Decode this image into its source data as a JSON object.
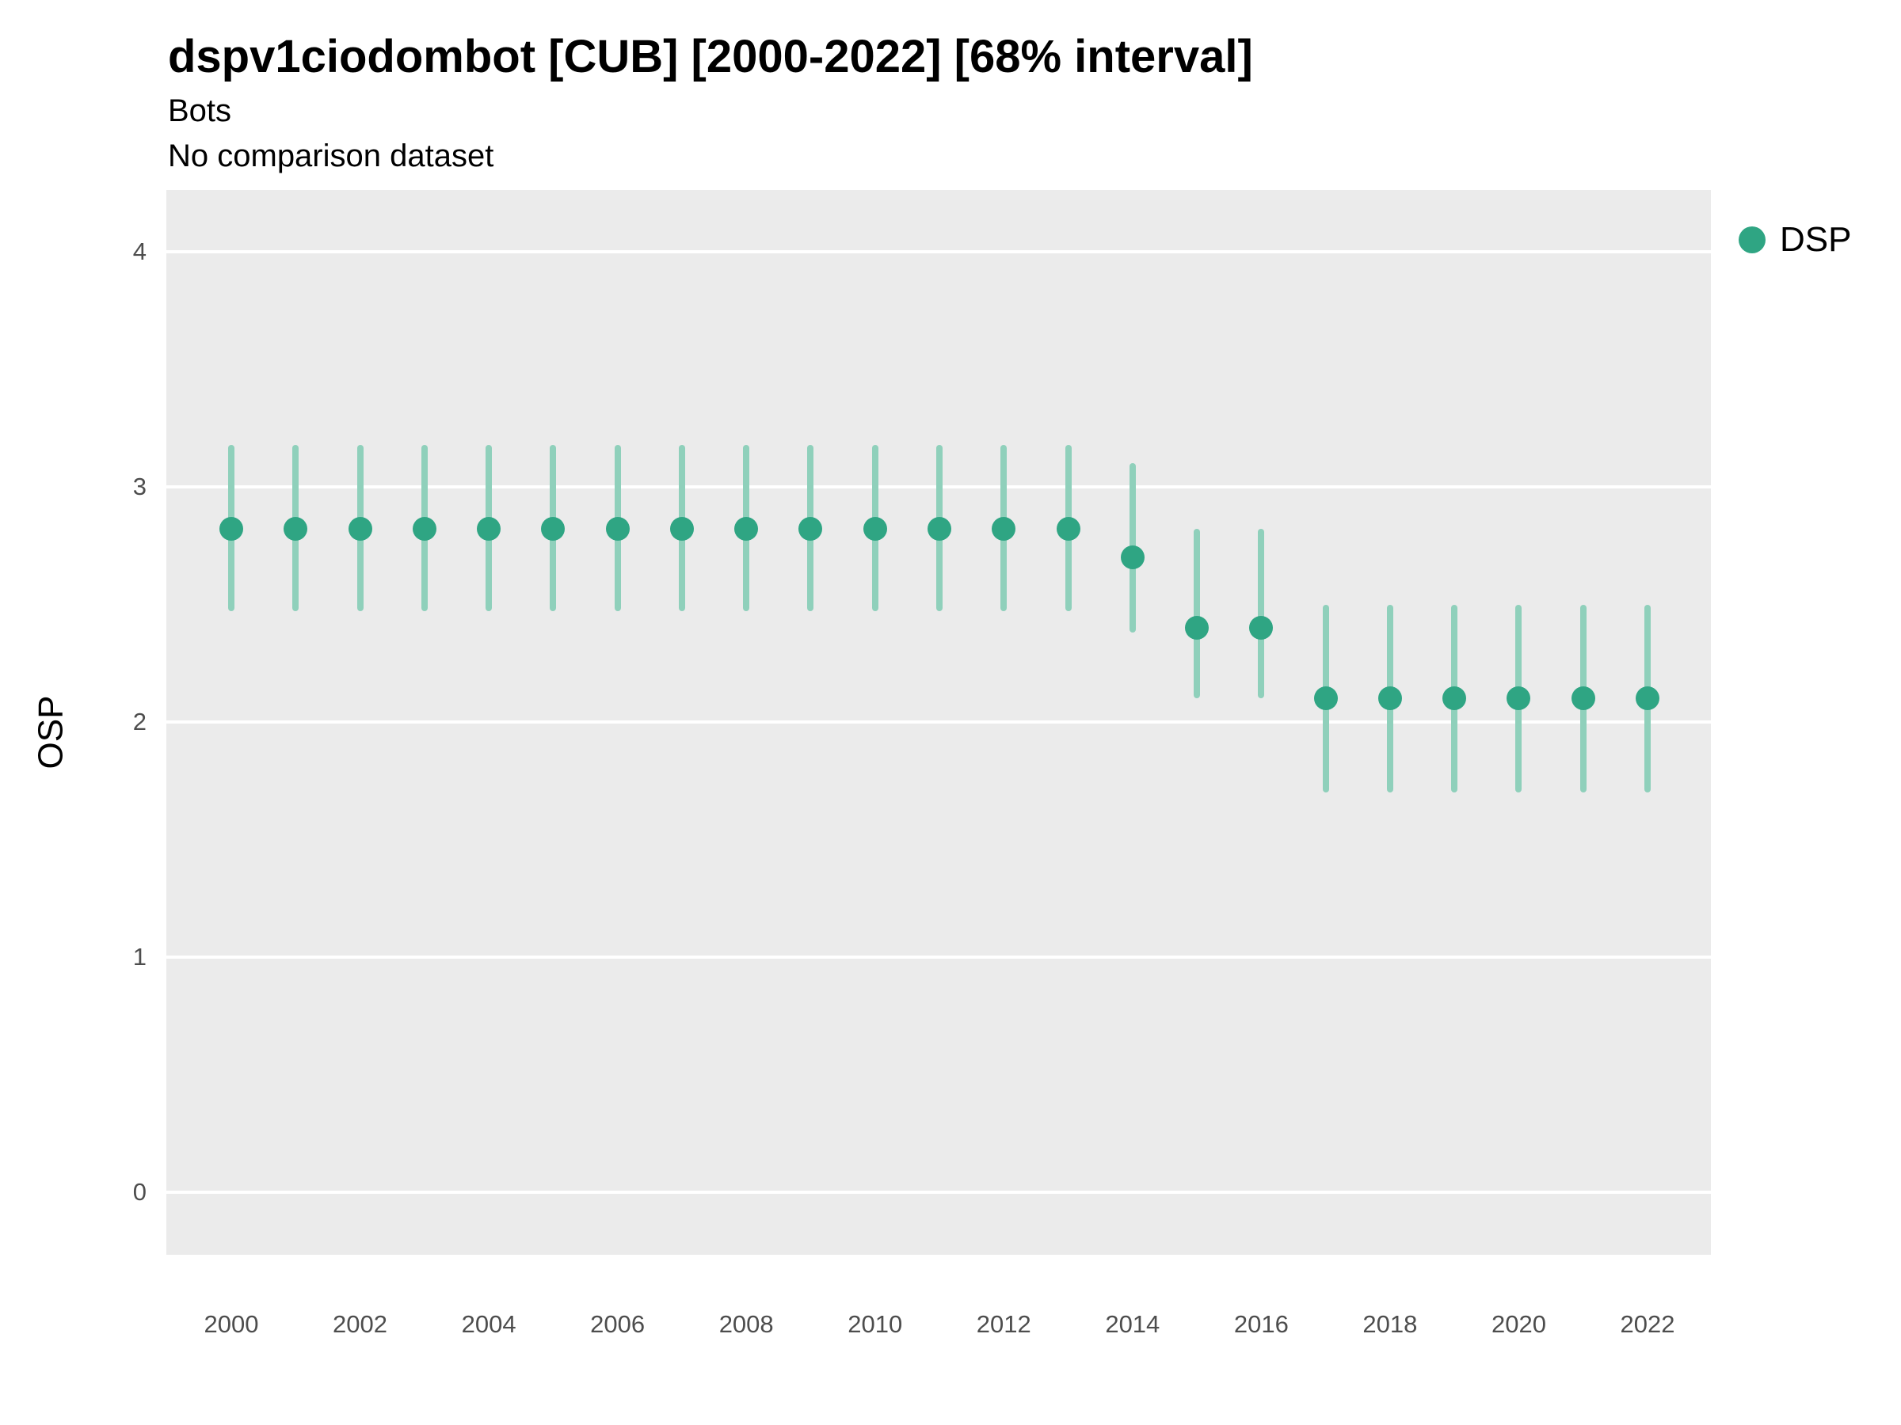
{
  "header": {
    "title": "dspv1ciodombot [CUB] [2000-2022] [68% interval]",
    "subtitle": "Bots",
    "note": "No comparison dataset"
  },
  "legend": {
    "label": "DSP"
  },
  "chart_data": {
    "type": "pointrange",
    "title": "dspv1ciodombot [CUB] [2000-2022] [68% interval]",
    "subtitle": "Bots",
    "note": "No comparison dataset",
    "xlabel": "",
    "ylabel": "OSP",
    "x": [
      2000,
      2001,
      2002,
      2003,
      2004,
      2005,
      2006,
      2007,
      2008,
      2009,
      2010,
      2011,
      2012,
      2013,
      2014,
      2015,
      2016,
      2017,
      2018,
      2019,
      2020,
      2021,
      2022
    ],
    "series": [
      {
        "name": "DSP",
        "values": [
          2.82,
          2.82,
          2.82,
          2.82,
          2.82,
          2.82,
          2.82,
          2.82,
          2.82,
          2.82,
          2.82,
          2.82,
          2.82,
          2.82,
          2.7,
          2.4,
          2.4,
          2.1,
          2.1,
          2.1,
          2.1,
          2.1,
          2.1
        ],
        "lower": [
          2.47,
          2.47,
          2.47,
          2.47,
          2.47,
          2.47,
          2.47,
          2.47,
          2.47,
          2.47,
          2.47,
          2.47,
          2.47,
          2.47,
          2.38,
          2.1,
          2.1,
          1.7,
          1.7,
          1.7,
          1.7,
          1.7,
          1.7
        ],
        "upper": [
          3.18,
          3.18,
          3.18,
          3.18,
          3.18,
          3.18,
          3.18,
          3.18,
          3.18,
          3.18,
          3.18,
          3.18,
          3.18,
          3.18,
          3.1,
          2.82,
          2.82,
          2.5,
          2.5,
          2.5,
          2.5,
          2.5,
          2.5
        ]
      }
    ],
    "ylim": [
      -0.35,
      4.3
    ],
    "yticks": [
      0,
      1,
      2,
      3,
      4
    ],
    "xticks": [
      2000,
      2002,
      2004,
      2006,
      2008,
      2010,
      2012,
      2014,
      2016,
      2018,
      2020,
      2022
    ],
    "grid": "horizontal-major",
    "legend_position": "right",
    "panel_background": "#ebebeb",
    "gridline_color": "#ffffff",
    "point_color": "#2fa583",
    "interval_color": "#8fd0bb"
  }
}
